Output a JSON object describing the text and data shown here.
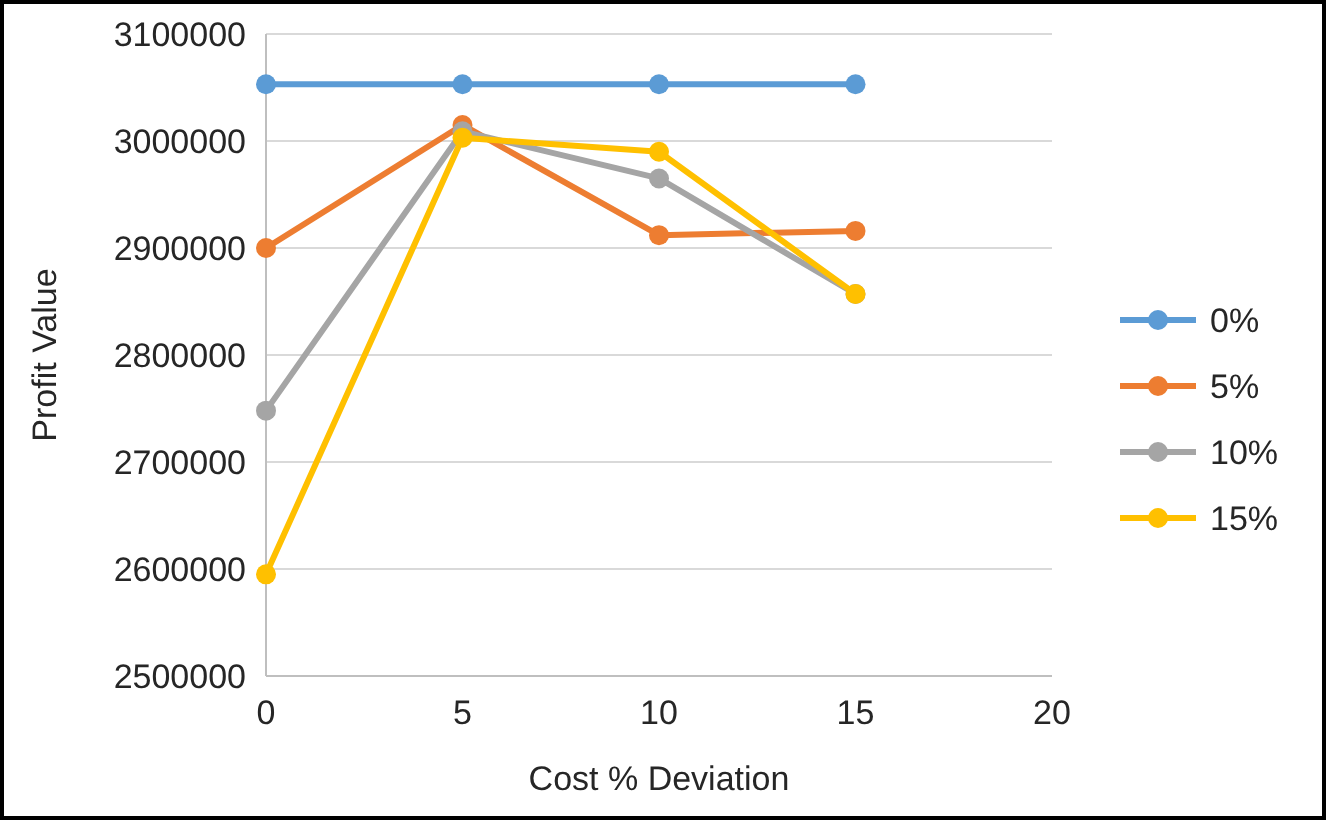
{
  "chart_data": {
    "type": "line",
    "xlabel": "Cost % Deviation",
    "ylabel": "Profit Value",
    "x": [
      0,
      5,
      10,
      15
    ],
    "series": [
      {
        "name": "0%",
        "color": "#5b9bd5",
        "values": [
          3053000,
          3053000,
          3053000,
          3053000
        ]
      },
      {
        "name": "5%",
        "color": "#ed7d31",
        "values": [
          2900000,
          3015000,
          2912000,
          2916000
        ]
      },
      {
        "name": "10%",
        "color": "#a5a5a5",
        "values": [
          2748000,
          3009000,
          2965000,
          2857000
        ]
      },
      {
        "name": "15%",
        "color": "#ffc000",
        "values": [
          2595000,
          3003000,
          2990000,
          2857000
        ]
      }
    ],
    "xlim": [
      0,
      20
    ],
    "xticks": [
      0,
      5,
      10,
      15,
      20
    ],
    "ylim": [
      2500000,
      3100000
    ],
    "yticks": [
      2500000,
      2600000,
      2700000,
      2800000,
      2900000,
      3000000,
      3100000
    ],
    "grid": "y",
    "legend": "right",
    "marker": "circle",
    "line_style": "solid"
  }
}
